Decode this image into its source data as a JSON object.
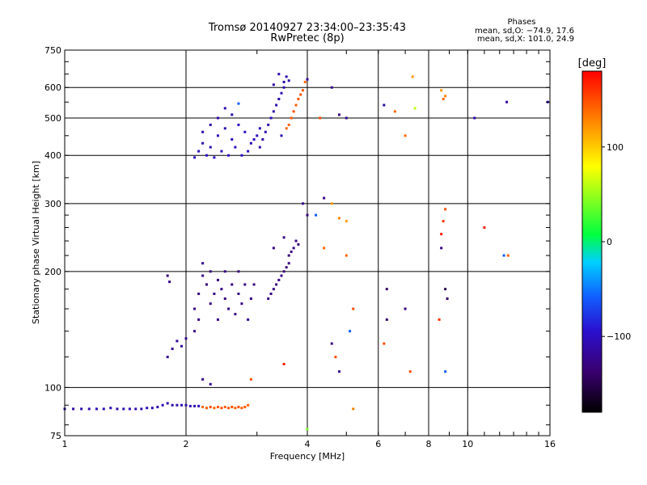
{
  "chart_data": {
    "type": "scatter",
    "title": "Tromsø 20140927 23:34:00–23:35:43",
    "subtitle": "RwPretec (8p)",
    "stats": {
      "heading": "Phases",
      "line1": "mean, sd,O: −74.9, 17.6",
      "line2": "mean, sd,X: 101.0, 24.9"
    },
    "xlabel": "Frequency [MHz]",
    "ylabel": "Stationary phase Virtual Height [km]",
    "x_scale": "log",
    "y_scale": "log",
    "xlim": [
      1,
      16
    ],
    "ylim": [
      75,
      750
    ],
    "x_ticks": [
      1,
      2,
      4,
      6,
      8,
      10,
      16
    ],
    "x_tick_labels": [
      "1",
      "2",
      "4",
      "6",
      "8",
      "10",
      "16"
    ],
    "y_ticks": [
      75,
      100,
      200,
      300,
      400,
      500,
      600,
      750
    ],
    "y_tick_labels": [
      "75",
      "100",
      "200",
      "300",
      "400",
      "500",
      "600",
      "750"
    ],
    "grid": true,
    "colorbar": {
      "label": "[deg]",
      "range": [
        -180,
        180
      ],
      "ticks": [
        100,
        0,
        -100
      ],
      "tick_labels": [
        "100",
        "0",
        "−100"
      ],
      "colors": [
        "#000000",
        "#3a0070",
        "#2a10d0",
        "#1060ff",
        "#00d0ff",
        "#00ff40",
        "#ffff00",
        "#ff8000",
        "#ff0000"
      ]
    },
    "series": [
      {
        "points": [
          [
            1.0,
            88,
            -110
          ],
          [
            1.05,
            88,
            -112
          ],
          [
            1.1,
            88,
            -108
          ],
          [
            1.15,
            88,
            -110
          ],
          [
            1.2,
            88,
            -105
          ],
          [
            1.25,
            88,
            -108
          ],
          [
            1.3,
            88.5,
            -106
          ],
          [
            1.35,
            88,
            -110
          ],
          [
            1.4,
            88,
            -107
          ],
          [
            1.45,
            88,
            -105
          ],
          [
            1.5,
            88,
            -108
          ],
          [
            1.55,
            88,
            -110
          ],
          [
            1.6,
            88.5,
            -106
          ],
          [
            1.65,
            88.5,
            -108
          ],
          [
            1.7,
            89,
            -110
          ],
          [
            1.75,
            90,
            -105
          ],
          [
            1.8,
            91,
            -112
          ],
          [
            1.85,
            90,
            -110
          ],
          [
            1.9,
            90,
            -108
          ],
          [
            1.95,
            90,
            -106
          ],
          [
            2.0,
            90,
            -110
          ],
          [
            2.05,
            89.5,
            -108
          ],
          [
            2.1,
            89.5,
            -112
          ],
          [
            2.15,
            89.5,
            -106
          ],
          [
            2.2,
            89,
            140
          ],
          [
            2.25,
            88.5,
            145
          ],
          [
            2.3,
            89,
            150
          ],
          [
            2.35,
            88.5,
            142
          ],
          [
            2.4,
            89,
            148
          ],
          [
            2.45,
            88.5,
            150
          ],
          [
            2.5,
            89,
            144
          ],
          [
            2.55,
            88.5,
            146
          ],
          [
            2.6,
            89,
            150
          ],
          [
            2.65,
            88.5,
            141
          ],
          [
            2.7,
            89,
            148
          ],
          [
            2.75,
            88.5,
            143
          ],
          [
            2.8,
            89,
            146
          ],
          [
            2.85,
            90,
            142
          ],
          [
            1.8,
            120,
            -120
          ],
          [
            1.85,
            126,
            -122
          ],
          [
            1.9,
            132,
            -118
          ],
          [
            1.95,
            128,
            -120
          ],
          [
            2.0,
            134,
            -124
          ],
          [
            1.8,
            195,
            -130
          ],
          [
            1.82,
            188,
            -126
          ],
          [
            2.1,
            140,
            -128
          ],
          [
            2.1,
            160,
            -130
          ],
          [
            2.15,
            150,
            -125
          ],
          [
            2.15,
            175,
            -130
          ],
          [
            2.2,
            195,
            -126
          ],
          [
            2.2,
            210,
            -120
          ],
          [
            2.25,
            185,
            -132
          ],
          [
            2.3,
            165,
            -128
          ],
          [
            2.3,
            200,
            -130
          ],
          [
            2.35,
            175,
            -124
          ],
          [
            2.4,
            190,
            -130
          ],
          [
            2.4,
            150,
            -126
          ],
          [
            2.45,
            180,
            -128
          ],
          [
            2.5,
            170,
            -130
          ],
          [
            2.5,
            200,
            -126
          ],
          [
            2.55,
            160,
            -124
          ],
          [
            2.6,
            185,
            -130
          ],
          [
            2.65,
            155,
            -128
          ],
          [
            2.7,
            175,
            -126
          ],
          [
            2.7,
            200,
            -132
          ],
          [
            2.75,
            165,
            -128
          ],
          [
            2.8,
            185,
            -130
          ],
          [
            2.85,
            150,
            -124
          ],
          [
            2.9,
            170,
            -128
          ],
          [
            2.95,
            185,
            -130
          ],
          [
            2.2,
            105,
            -125
          ],
          [
            2.3,
            102,
            -120
          ],
          [
            2.1,
            395,
            -100
          ],
          [
            2.15,
            410,
            -104
          ],
          [
            2.2,
            430,
            -108
          ],
          [
            2.2,
            460,
            -110
          ],
          [
            2.25,
            400,
            -100
          ],
          [
            2.3,
            420,
            -102
          ],
          [
            2.3,
            480,
            -112
          ],
          [
            2.35,
            395,
            -98
          ],
          [
            2.4,
            450,
            -104
          ],
          [
            2.4,
            500,
            -110
          ],
          [
            2.45,
            410,
            -100
          ],
          [
            2.5,
            470,
            -106
          ],
          [
            2.5,
            530,
            -108
          ],
          [
            2.55,
            400,
            -98
          ],
          [
            2.6,
            440,
            -102
          ],
          [
            2.6,
            510,
            -110
          ],
          [
            2.65,
            420,
            -100
          ],
          [
            2.7,
            480,
            -104
          ],
          [
            2.7,
            545,
            -60
          ],
          [
            2.75,
            400,
            -98
          ],
          [
            2.8,
            460,
            -102
          ],
          [
            2.85,
            410,
            -100
          ],
          [
            2.9,
            430,
            -104
          ],
          [
            2.95,
            440,
            -100
          ],
          [
            3.0,
            450,
            -102
          ],
          [
            3.05,
            470,
            -104
          ],
          [
            3.2,
            170,
            -130
          ],
          [
            3.25,
            175,
            -128
          ],
          [
            3.3,
            180,
            -126
          ],
          [
            3.35,
            185,
            -130
          ],
          [
            3.4,
            190,
            -128
          ],
          [
            3.45,
            195,
            -126
          ],
          [
            3.5,
            200,
            -130
          ],
          [
            3.55,
            205,
            -128
          ],
          [
            3.6,
            210,
            -126
          ],
          [
            3.6,
            220,
            -132
          ],
          [
            3.65,
            225,
            -130
          ],
          [
            3.7,
            230,
            -128
          ],
          [
            3.75,
            240,
            -126
          ],
          [
            3.8,
            235,
            -130
          ],
          [
            3.3,
            230,
            -128
          ],
          [
            3.5,
            245,
            -126
          ],
          [
            3.05,
            420,
            -110
          ],
          [
            3.1,
            440,
            -112
          ],
          [
            3.15,
            460,
            -108
          ],
          [
            3.2,
            480,
            -110
          ],
          [
            3.25,
            500,
            -106
          ],
          [
            3.3,
            520,
            -110
          ],
          [
            3.35,
            540,
            -108
          ],
          [
            3.4,
            560,
            -112
          ],
          [
            3.45,
            580,
            -108
          ],
          [
            3.5,
            600,
            -110
          ],
          [
            3.5,
            620,
            -112
          ],
          [
            3.55,
            640,
            -108
          ],
          [
            3.6,
            625,
            -110
          ],
          [
            3.3,
            610,
            -112
          ],
          [
            3.4,
            650,
            -108
          ],
          [
            3.45,
            450,
            -106
          ],
          [
            3.55,
            470,
            140
          ],
          [
            3.6,
            480,
            142
          ],
          [
            3.65,
            500,
            146
          ],
          [
            3.7,
            520,
            150
          ],
          [
            3.75,
            540,
            144
          ],
          [
            3.8,
            560,
            148
          ],
          [
            3.85,
            575,
            150
          ],
          [
            3.9,
            590,
            146
          ],
          [
            3.95,
            620,
            140
          ],
          [
            4.0,
            630,
            -120
          ],
          [
            4.3,
            500,
            150
          ],
          [
            4.6,
            600,
            -120
          ],
          [
            4.8,
            510,
            -130
          ],
          [
            5.0,
            500,
            -122
          ],
          [
            6.2,
            540,
            -110
          ],
          [
            6.6,
            520,
            140
          ],
          [
            7.0,
            450,
            140
          ],
          [
            7.3,
            640,
            120
          ],
          [
            7.4,
            530,
            60
          ],
          [
            8.6,
            590,
            120
          ],
          [
            8.7,
            560,
            140
          ],
          [
            8.8,
            570,
            130
          ],
          [
            10.4,
            500,
            -110
          ],
          [
            12.5,
            550,
            -120
          ],
          [
            15.8,
            550,
            -110
          ],
          [
            3.9,
            300,
            -120
          ],
          [
            4.0,
            280,
            -130
          ],
          [
            4.2,
            280,
            -60
          ],
          [
            4.4,
            310,
            -130
          ],
          [
            4.6,
            300,
            120
          ],
          [
            4.8,
            275,
            130
          ],
          [
            5.0,
            270,
            120
          ],
          [
            4.4,
            230,
            140
          ],
          [
            5.0,
            220,
            140
          ],
          [
            5.2,
            160,
            150
          ],
          [
            5.1,
            140,
            -60
          ],
          [
            4.6,
            130,
            -130
          ],
          [
            4.7,
            120,
            150
          ],
          [
            4.8,
            110,
            -120
          ],
          [
            6.2,
            130,
            150
          ],
          [
            6.3,
            150,
            -140
          ],
          [
            6.3,
            180,
            -140
          ],
          [
            7.0,
            160,
            -130
          ],
          [
            7.2,
            110,
            150
          ],
          [
            8.5,
            150,
            160
          ],
          [
            8.6,
            230,
            -130
          ],
          [
            8.6,
            250,
            170
          ],
          [
            8.7,
            270,
            160
          ],
          [
            8.8,
            290,
            150
          ],
          [
            8.8,
            180,
            -150
          ],
          [
            8.9,
            170,
            -140
          ],
          [
            8.8,
            110,
            -60
          ],
          [
            11.0,
            260,
            170
          ],
          [
            12.3,
            220,
            -60
          ],
          [
            12.6,
            220,
            140
          ],
          [
            3.5,
            115,
            170
          ],
          [
            2.9,
            105,
            150
          ],
          [
            4.0,
            78,
            40
          ],
          [
            5.2,
            88,
            130
          ]
        ]
      }
    ]
  }
}
